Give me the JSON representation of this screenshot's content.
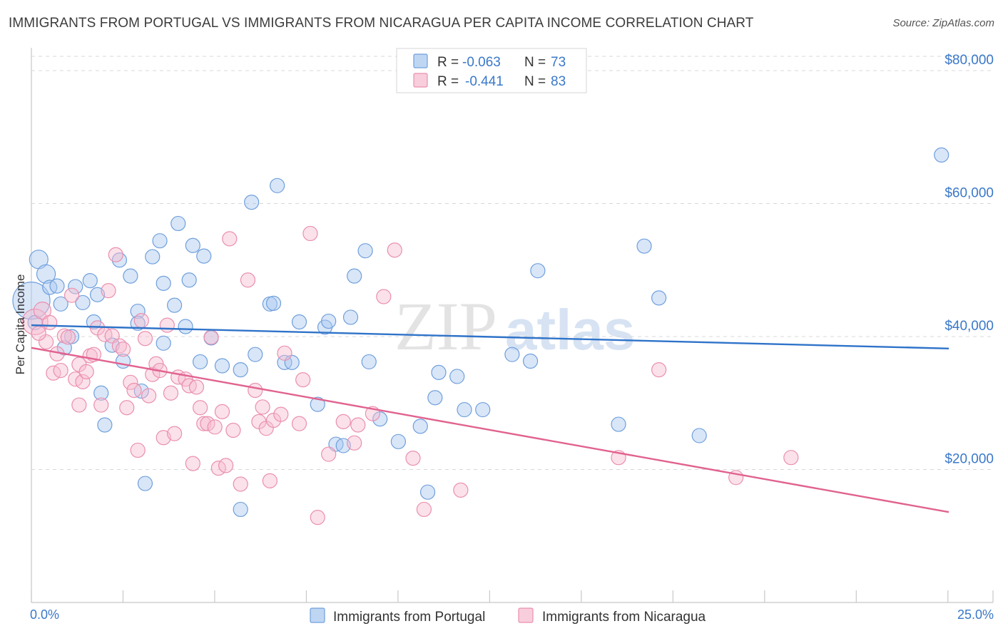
{
  "title": "IMMIGRANTS FROM PORTUGAL VS IMMIGRANTS FROM NICARAGUA PER CAPITA INCOME CORRELATION CHART",
  "source": "Source: ZipAtlas.com",
  "watermark": {
    "zip": "ZIP",
    "atlas": "atlas"
  },
  "colors": {
    "portugal_fill": "#a9c8ef",
    "portugal_stroke": "#6f9fdc",
    "portugal_line": "#2f73c9",
    "nicaragua_fill": "#f6bdd0",
    "nicaragua_stroke": "#ea8fae",
    "nicaragua_line": "#e1628f",
    "tick_text": "#3a78c9",
    "grid": "#d8d8d8"
  },
  "legend": {
    "rows": [
      {
        "r_label": "R =",
        "r_value": "-0.063",
        "n_label": "N =",
        "n_value": "73"
      },
      {
        "r_label": "R =",
        "r_value": "-0.441",
        "n_label": "N =",
        "n_value": "83"
      }
    ]
  },
  "chart_data": {
    "type": "scatter",
    "title": "IMMIGRANTS FROM PORTUGAL VS IMMIGRANTS FROM NICARAGUA PER CAPITA INCOME CORRELATION CHART",
    "xlabel": "",
    "ylabel": "Per Capita Income",
    "xlim": [
      0,
      25
    ],
    "ylim": [
      0,
      83000
    ],
    "x_tick_labels": [
      "0.0%",
      "25.0%"
    ],
    "y_ticks": [
      20000,
      40000,
      60000,
      80000
    ],
    "y_tick_labels": [
      "$20,000",
      "$40,000",
      "$60,000",
      "$80,000"
    ],
    "legend_position": "top-center",
    "series": [
      {
        "name": "Immigrants from Portugal",
        "r": -0.063,
        "n": 73,
        "trend": {
          "x": [
            0,
            25
          ],
          "y": [
            41700,
            38200
          ]
        },
        "points": [
          [
            0.0,
            45400,
            26
          ],
          [
            0.2,
            51600,
            13
          ],
          [
            0.4,
            49400,
            13
          ],
          [
            0.5,
            47400,
            10
          ],
          [
            0.7,
            47600,
            10
          ],
          [
            0.8,
            44900,
            10
          ],
          [
            0.9,
            38300,
            10
          ],
          [
            1.1,
            40000,
            10
          ],
          [
            1.2,
            47500,
            10
          ],
          [
            1.4,
            45100,
            10
          ],
          [
            1.6,
            48400,
            10
          ],
          [
            1.7,
            42200,
            10
          ],
          [
            1.8,
            46300,
            10
          ],
          [
            1.9,
            31500,
            10
          ],
          [
            2.0,
            26700,
            10
          ],
          [
            2.2,
            38700,
            10
          ],
          [
            2.4,
            51500,
            10
          ],
          [
            2.5,
            36300,
            10
          ],
          [
            2.7,
            49100,
            10
          ],
          [
            2.9,
            43800,
            10
          ],
          [
            2.9,
            42000,
            10
          ],
          [
            3.0,
            31800,
            10
          ],
          [
            3.1,
            17900,
            10
          ],
          [
            3.3,
            52000,
            10
          ],
          [
            3.5,
            54400,
            10
          ],
          [
            3.6,
            48000,
            10
          ],
          [
            3.6,
            39000,
            10
          ],
          [
            3.9,
            44700,
            10
          ],
          [
            4.0,
            57000,
            10
          ],
          [
            4.2,
            41500,
            10
          ],
          [
            4.3,
            48500,
            10
          ],
          [
            4.4,
            53700,
            10
          ],
          [
            4.6,
            36200,
            10
          ],
          [
            4.7,
            52100,
            10
          ],
          [
            4.9,
            39800,
            10
          ],
          [
            5.2,
            35600,
            10
          ],
          [
            5.7,
            35000,
            10
          ],
          [
            5.7,
            14000,
            10
          ],
          [
            6.0,
            60200,
            10
          ],
          [
            6.1,
            37300,
            10
          ],
          [
            6.5,
            44900,
            10
          ],
          [
            6.6,
            45000,
            10
          ],
          [
            6.7,
            62700,
            10
          ],
          [
            6.9,
            36100,
            10
          ],
          [
            7.1,
            36100,
            10
          ],
          [
            7.3,
            42200,
            10
          ],
          [
            7.8,
            29800,
            10
          ],
          [
            8.0,
            41400,
            10
          ],
          [
            8.1,
            42300,
            10
          ],
          [
            8.3,
            23800,
            10
          ],
          [
            8.5,
            23600,
            10
          ],
          [
            8.7,
            42900,
            10
          ],
          [
            8.8,
            49100,
            10
          ],
          [
            9.1,
            52900,
            10
          ],
          [
            9.2,
            36200,
            10
          ],
          [
            9.5,
            27600,
            10
          ],
          [
            10.0,
            24200,
            10
          ],
          [
            10.6,
            26500,
            10
          ],
          [
            10.8,
            16600,
            10
          ],
          [
            11.0,
            30800,
            10
          ],
          [
            11.1,
            34600,
            10
          ],
          [
            11.6,
            34000,
            10
          ],
          [
            11.8,
            29000,
            10
          ],
          [
            12.3,
            29000,
            10
          ],
          [
            13.1,
            37300,
            10
          ],
          [
            13.6,
            36300,
            10
          ],
          [
            13.8,
            49900,
            10
          ],
          [
            16.0,
            26800,
            10
          ],
          [
            16.7,
            53600,
            10
          ],
          [
            17.1,
            45800,
            10
          ],
          [
            18.2,
            25100,
            10
          ],
          [
            24.8,
            67300,
            10
          ],
          [
            0.1,
            42100,
            10
          ]
        ]
      },
      {
        "name": "Immigrants from Nicaragua",
        "r": -0.441,
        "n": 83,
        "trend": {
          "x": [
            0,
            25
          ],
          "y": [
            38300,
            13600
          ]
        },
        "points": [
          [
            0.1,
            42200,
            18
          ],
          [
            0.3,
            43900,
            12
          ],
          [
            0.4,
            39200,
            10
          ],
          [
            0.5,
            42100,
            10
          ],
          [
            0.6,
            34500,
            10
          ],
          [
            0.7,
            37400,
            10
          ],
          [
            0.8,
            34900,
            10
          ],
          [
            0.9,
            40100,
            10
          ],
          [
            1.0,
            39900,
            10
          ],
          [
            1.1,
            46200,
            10
          ],
          [
            1.2,
            33600,
            10
          ],
          [
            1.3,
            29700,
            10
          ],
          [
            1.3,
            35800,
            10
          ],
          [
            1.4,
            33200,
            10
          ],
          [
            1.5,
            34700,
            10
          ],
          [
            1.6,
            37100,
            10
          ],
          [
            1.7,
            37300,
            10
          ],
          [
            1.8,
            41300,
            10
          ],
          [
            1.9,
            29700,
            10
          ],
          [
            2.0,
            40300,
            10
          ],
          [
            2.1,
            46900,
            10
          ],
          [
            2.2,
            40100,
            10
          ],
          [
            2.3,
            52300,
            10
          ],
          [
            2.4,
            38600,
            10
          ],
          [
            2.5,
            38100,
            10
          ],
          [
            2.6,
            29300,
            10
          ],
          [
            2.7,
            33100,
            10
          ],
          [
            2.8,
            31900,
            10
          ],
          [
            2.9,
            22900,
            10
          ],
          [
            3.0,
            42400,
            10
          ],
          [
            3.1,
            39700,
            10
          ],
          [
            3.2,
            31100,
            10
          ],
          [
            3.3,
            34300,
            10
          ],
          [
            3.4,
            35900,
            10
          ],
          [
            3.5,
            34900,
            10
          ],
          [
            3.6,
            24800,
            10
          ],
          [
            3.7,
            41700,
            10
          ],
          [
            3.8,
            31500,
            10
          ],
          [
            3.9,
            25400,
            10
          ],
          [
            4.0,
            33900,
            10
          ],
          [
            4.2,
            33600,
            10
          ],
          [
            4.3,
            32600,
            10
          ],
          [
            4.4,
            20900,
            10
          ],
          [
            4.5,
            32400,
            10
          ],
          [
            4.6,
            29300,
            10
          ],
          [
            4.7,
            26900,
            10
          ],
          [
            4.8,
            26900,
            10
          ],
          [
            4.9,
            39900,
            10
          ],
          [
            5.0,
            26400,
            10
          ],
          [
            5.1,
            20200,
            10
          ],
          [
            5.2,
            28700,
            10
          ],
          [
            5.3,
            20600,
            10
          ],
          [
            5.4,
            54700,
            10
          ],
          [
            5.5,
            25900,
            10
          ],
          [
            5.7,
            17800,
            10
          ],
          [
            5.9,
            48500,
            10
          ],
          [
            6.1,
            31900,
            10
          ],
          [
            6.2,
            27200,
            10
          ],
          [
            6.3,
            29400,
            10
          ],
          [
            6.4,
            26200,
            10
          ],
          [
            6.5,
            18300,
            10
          ],
          [
            6.6,
            27400,
            10
          ],
          [
            6.8,
            28300,
            10
          ],
          [
            6.9,
            37500,
            10
          ],
          [
            7.3,
            26900,
            10
          ],
          [
            7.4,
            33500,
            10
          ],
          [
            7.6,
            55500,
            10
          ],
          [
            7.8,
            12800,
            10
          ],
          [
            8.1,
            22300,
            10
          ],
          [
            8.5,
            27200,
            10
          ],
          [
            8.8,
            24000,
            10
          ],
          [
            8.9,
            26700,
            10
          ],
          [
            9.3,
            28400,
            10
          ],
          [
            9.6,
            46000,
            10
          ],
          [
            9.9,
            53000,
            10
          ],
          [
            10.4,
            21700,
            10
          ],
          [
            10.7,
            14000,
            10
          ],
          [
            11.7,
            16900,
            10
          ],
          [
            16.0,
            21800,
            10
          ],
          [
            17.1,
            35000,
            10
          ],
          [
            19.2,
            18800,
            10
          ],
          [
            20.7,
            21800,
            10
          ],
          [
            0.2,
            40500,
            10
          ]
        ]
      }
    ]
  }
}
